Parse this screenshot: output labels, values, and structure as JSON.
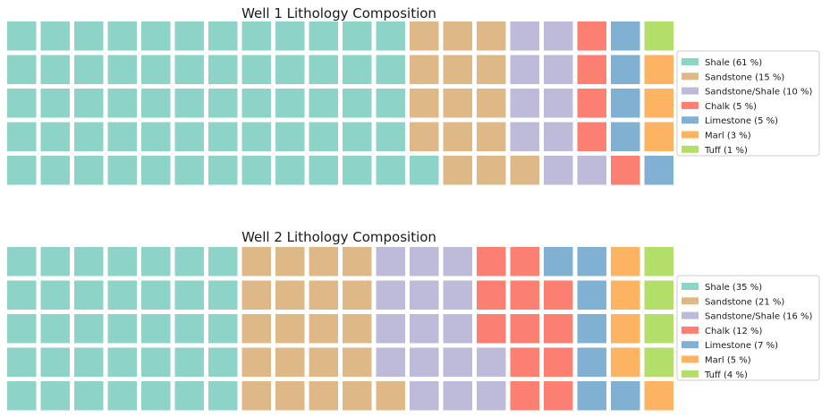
{
  "chart_data": [
    {
      "type": "waffle",
      "title": "Well 1 Lithology Composition",
      "grid_rows": 5,
      "grid_cols": 20,
      "series": [
        {
          "name": "Shale",
          "label": "Shale (61 %)",
          "percent": 61,
          "squares": 61,
          "color": "#8dd3c7"
        },
        {
          "name": "Sandstone",
          "label": "Sandstone (15 %)",
          "percent": 15,
          "squares": 15,
          "color": "#dfb887"
        },
        {
          "name": "Sandstone/Shale",
          "label": "Sandstone/Shale (10 %)",
          "percent": 10,
          "squares": 10,
          "color": "#bebada"
        },
        {
          "name": "Chalk",
          "label": "Chalk (5 %)",
          "percent": 5,
          "squares": 5,
          "color": "#fb8072"
        },
        {
          "name": "Limestone",
          "label": "Limestone (5 %)",
          "percent": 5,
          "squares": 5,
          "color": "#80b1d3"
        },
        {
          "name": "Marl",
          "label": "Marl (3 %)",
          "percent": 3,
          "squares": 3,
          "color": "#fdb462"
        },
        {
          "name": "Tuff",
          "label": "Tuff (1 %)",
          "percent": 1,
          "squares": 1,
          "color": "#b3de69"
        }
      ],
      "legend_position": "right"
    },
    {
      "type": "waffle",
      "title": "Well 2 Lithology Composition",
      "grid_rows": 5,
      "grid_cols": 20,
      "series": [
        {
          "name": "Shale",
          "label": "Shale (35 %)",
          "percent": 35,
          "squares": 35,
          "color": "#8dd3c7"
        },
        {
          "name": "Sandstone",
          "label": "Sandstone (21 %)",
          "percent": 21,
          "squares": 21,
          "color": "#dfb887"
        },
        {
          "name": "Sandstone/Shale",
          "label": "Sandstone/Shale (16 %)",
          "percent": 16,
          "squares": 16,
          "color": "#bebada"
        },
        {
          "name": "Chalk",
          "label": "Chalk (12 %)",
          "percent": 12,
          "squares": 12,
          "color": "#fb8072"
        },
        {
          "name": "Limestone",
          "label": "Limestone (7 %)",
          "percent": 7,
          "squares": 7,
          "color": "#80b1d3"
        },
        {
          "name": "Marl",
          "label": "Marl (5 %)",
          "percent": 5,
          "squares": 5,
          "color": "#fdb462"
        },
        {
          "name": "Tuff",
          "label": "Tuff (4 %)",
          "percent": 4,
          "squares": 4,
          "color": "#b3de69"
        }
      ],
      "legend_position": "right"
    }
  ]
}
